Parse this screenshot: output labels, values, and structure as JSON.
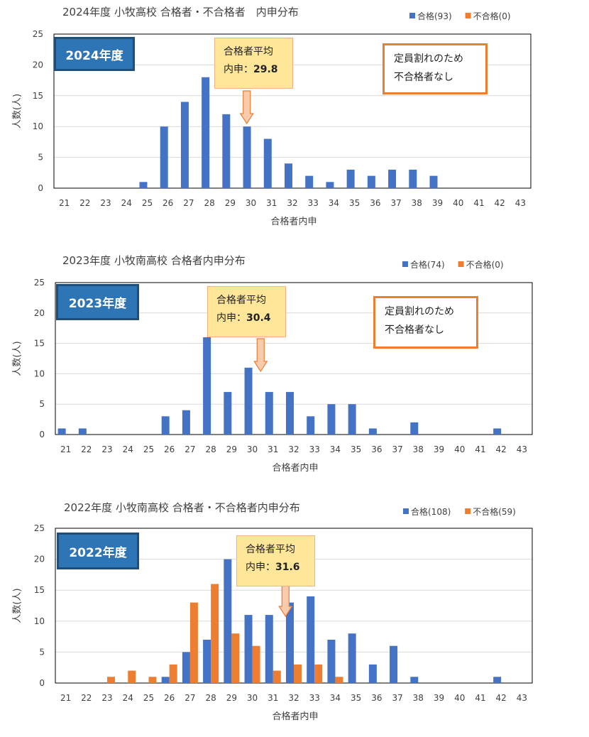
{
  "chart_data": [
    {
      "type": "bar",
      "title": "2024年度 小牧高校 合格者・不合格者　内申分布",
      "badge": "2024年度",
      "xlabel": "合格者内申",
      "ylabel": "人数(人)",
      "ylim": [
        0,
        25
      ],
      "yticks": [
        0,
        5,
        10,
        15,
        20,
        25
      ],
      "categories": [
        21,
        22,
        23,
        24,
        25,
        26,
        27,
        28,
        29,
        30,
        31,
        32,
        33,
        34,
        35,
        36,
        37,
        38,
        39,
        40,
        41,
        42,
        43
      ],
      "grid": true,
      "legend_position": "top-right",
      "series": [
        {
          "name": "合格(93)",
          "color": "#4472c4",
          "values": [
            0,
            0,
            0,
            0,
            1,
            10,
            14,
            18,
            12,
            10,
            8,
            4,
            2,
            1,
            3,
            2,
            3,
            3,
            2,
            0,
            0,
            0,
            0
          ]
        },
        {
          "name": "不合格(0)",
          "color": "#ed7d31",
          "values": [
            0,
            0,
            0,
            0,
            0,
            0,
            0,
            0,
            0,
            0,
            0,
            0,
            0,
            0,
            0,
            0,
            0,
            0,
            0,
            0,
            0,
            0,
            0
          ]
        }
      ],
      "average": {
        "label": "合格者平均",
        "prefix": "内申：",
        "value": "29.8",
        "x": 29.8
      },
      "note": {
        "line1": "定員割れのため",
        "line2": "不合格者なし"
      }
    },
    {
      "type": "bar",
      "title": "2023年度 小牧南高校 合格者内申分布",
      "badge": "2023年度",
      "xlabel": "合格者内申",
      "ylabel": "人数(人)",
      "ylim": [
        0,
        25
      ],
      "yticks": [
        0,
        5,
        10,
        15,
        20,
        25
      ],
      "categories": [
        21,
        22,
        23,
        24,
        25,
        26,
        27,
        28,
        29,
        30,
        31,
        32,
        33,
        34,
        35,
        36,
        37,
        38,
        39,
        40,
        41,
        42,
        43
      ],
      "grid": true,
      "legend_position": "top-right",
      "series": [
        {
          "name": "合格(74)",
          "color": "#4472c4",
          "values": [
            1,
            1,
            0,
            0,
            0,
            3,
            4,
            16,
            7,
            11,
            7,
            7,
            3,
            5,
            5,
            1,
            0,
            2,
            0,
            0,
            0,
            1,
            0
          ]
        },
        {
          "name": "不合格(0)",
          "color": "#ed7d31",
          "values": [
            0,
            0,
            0,
            0,
            0,
            0,
            0,
            0,
            0,
            0,
            0,
            0,
            0,
            0,
            0,
            0,
            0,
            0,
            0,
            0,
            0,
            0,
            0
          ]
        }
      ],
      "average": {
        "label": "合格者平均",
        "prefix": "内申：",
        "value": "30.4",
        "x": 30.4
      },
      "note": {
        "line1": "定員割れのため",
        "line2": "不合格者なし"
      }
    },
    {
      "type": "bar",
      "title": "2022年度 小牧南高校 合格者・不合格者内申分布",
      "badge": "2022年度",
      "xlabel": "合格者内申",
      "ylabel": "人数(人)",
      "ylim": [
        0,
        25
      ],
      "yticks": [
        0,
        5,
        10,
        15,
        20,
        25
      ],
      "categories": [
        21,
        22,
        23,
        24,
        25,
        26,
        27,
        28,
        29,
        30,
        31,
        32,
        33,
        34,
        35,
        36,
        37,
        38,
        39,
        40,
        41,
        42,
        43
      ],
      "grid": true,
      "legend_position": "top-right",
      "series": [
        {
          "name": "合格(108)",
          "color": "#4472c4",
          "values": [
            0,
            0,
            0,
            0,
            0,
            1,
            5,
            7,
            20,
            11,
            11,
            13,
            14,
            7,
            8,
            3,
            6,
            1,
            0,
            0,
            0,
            1,
            0
          ]
        },
        {
          "name": "不合格(59)",
          "color": "#ed7d31",
          "values": [
            0,
            0,
            1,
            2,
            1,
            3,
            13,
            16,
            8,
            6,
            2,
            3,
            3,
            1,
            0,
            0,
            0,
            0,
            0,
            0,
            0,
            0,
            0
          ]
        }
      ],
      "average": {
        "label": "合格者平均",
        "prefix": "内申：",
        "value": "31.6",
        "x": 31.6
      }
    }
  ]
}
